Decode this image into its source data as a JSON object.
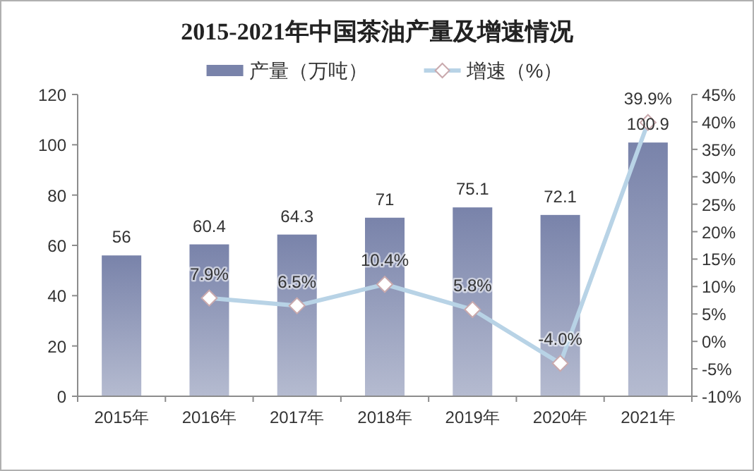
{
  "chart_data": {
    "type": "bar",
    "title": "2015-2021年中国茶油产量及增速情况",
    "categories": [
      "2015年",
      "2016年",
      "2017年",
      "2018年",
      "2019年",
      "2020年",
      "2021年"
    ],
    "series": [
      {
        "name": "产量（万吨）",
        "color": "#7983aa",
        "values": [
          56,
          60.4,
          64.3,
          71,
          75.1,
          72.1,
          100.9
        ]
      },
      {
        "name": "增速（%）",
        "type": "line",
        "axis": "y2",
        "color": "#b8d3e6",
        "marker": "diamond",
        "values": [
          null,
          7.9,
          6.5,
          10.4,
          5.8,
          -4.0,
          39.9
        ],
        "value_labels": [
          null,
          "7.9%",
          "6.5%",
          "10.4%",
          "5.8%",
          "-4.0%",
          "39.9%"
        ]
      }
    ],
    "ylim": [
      0,
      120
    ],
    "yticks": [
      0,
      20,
      40,
      60,
      80,
      100,
      120
    ],
    "y2lim": [
      -10,
      45
    ],
    "y2ticks": [
      {
        "value": -10,
        "label": "-10%"
      },
      {
        "value": -5,
        "label": "-5%"
      },
      {
        "value": 0,
        "label": "0%"
      },
      {
        "value": 5,
        "label": "5%"
      },
      {
        "value": 10,
        "label": "10%"
      },
      {
        "value": 15,
        "label": "15%"
      },
      {
        "value": 20,
        "label": "20%"
      },
      {
        "value": 25,
        "label": "25%"
      },
      {
        "value": 30,
        "label": "30%"
      },
      {
        "value": 35,
        "label": "35%"
      },
      {
        "value": 40,
        "label": "40%"
      },
      {
        "value": 45,
        "label": "45%"
      }
    ],
    "data_labels": true,
    "legend": "top"
  }
}
